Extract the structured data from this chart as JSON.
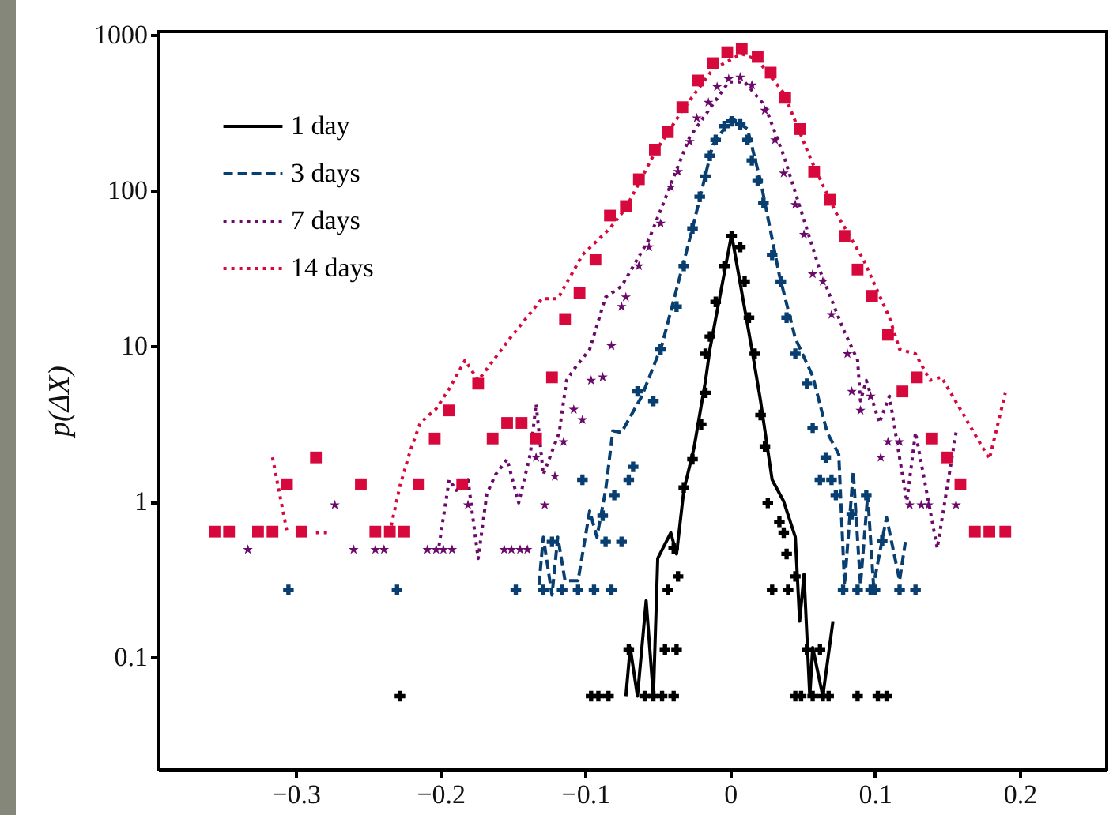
{
  "chart_data": {
    "type": "line",
    "ylabel": "p(ΔX)",
    "log": "y",
    "grid": false,
    "legend": "top left",
    "xlim": [
      -0.395,
      0.26
    ],
    "xticks": [
      {
        "value": -0.3,
        "label": "−0.3"
      },
      {
        "value": -0.2,
        "label": "−0.2"
      },
      {
        "value": -0.1,
        "label": "−0.1"
      },
      0,
      0.1,
      0.2
    ],
    "ylim": [
      0.019,
      1050
    ],
    "yticks": [
      0.1,
      1,
      10,
      100,
      1000
    ],
    "series": [
      {
        "name": "1 day",
        "color": "#000000",
        "line_style": "solid",
        "marker": "none",
        "x": [
          -0.072,
          -0.069,
          -0.064,
          -0.058,
          -0.053,
          -0.05,
          -0.041,
          -0.037,
          -0.032,
          -0.025,
          -0.017,
          -0.014,
          0.001,
          0.015,
          0.021,
          0.029,
          0.037,
          0.045,
          0.048,
          0.051,
          0.055,
          0.057,
          0.064,
          0.071
        ],
        "values": [
          0.056,
          0.115,
          0.056,
          0.23,
          0.056,
          0.43,
          0.63,
          0.46,
          1.18,
          2.2,
          6.0,
          9.5,
          52,
          9.5,
          4.43,
          1.38,
          1.0,
          0.59,
          0.17,
          0.34,
          0.056,
          0.115,
          0.056,
          0.17
        ]
      },
      {
        "type": "scatter",
        "color": "#000000",
        "marker": "cross",
        "x": [
          -0.228,
          -0.096,
          -0.091,
          -0.084,
          -0.07,
          -0.059,
          -0.053,
          -0.047,
          -0.045,
          -0.043,
          -0.039,
          -0.039,
          -0.037,
          -0.036,
          -0.032,
          -0.026,
          -0.02,
          -0.017,
          -0.017,
          -0.014,
          -0.01,
          -0.004,
          0.001,
          0.007,
          0.01,
          0.013,
          0.017,
          0.021,
          0.024,
          0.026,
          0.029,
          0.034,
          0.037,
          0.039,
          0.04,
          0.045,
          0.045,
          0.049,
          0.053,
          0.057,
          0.062,
          0.064,
          0.068,
          0.088,
          0.102,
          0.108
        ],
        "values": [
          0.056,
          0.056,
          0.056,
          0.056,
          0.112,
          0.056,
          0.056,
          0.056,
          0.112,
          0.27,
          0.056,
          0.5,
          0.112,
          0.33,
          1.23,
          1.87,
          3.13,
          5.0,
          8.9,
          11.5,
          19.2,
          32.7,
          51,
          43.3,
          26,
          15.2,
          8.9,
          3.6,
          2.26,
          0.98,
          0.27,
          0.74,
          0.63,
          0.46,
          0.27,
          0.33,
          0.056,
          0.056,
          0.112,
          0.056,
          0.112,
          0.056,
          0.056,
          0.056,
          0.056,
          0.056
        ]
      },
      {
        "name": "3 days",
        "color": "#083f70",
        "line_style": "dashed",
        "marker": "none",
        "x": [
          -0.132,
          -0.129,
          -0.123,
          -0.119,
          -0.114,
          -0.105,
          -0.097,
          -0.092,
          -0.086,
          -0.081,
          -0.075,
          -0.061,
          -0.047,
          -0.026,
          -0.012,
          0.001,
          0.012,
          0.021,
          0.034,
          0.045,
          0.057,
          0.067,
          0.075,
          0.079,
          0.085,
          0.09,
          0.095,
          0.099,
          0.108,
          0.117,
          0.121
        ],
        "values": [
          0.29,
          0.59,
          0.25,
          0.59,
          0.31,
          0.31,
          0.87,
          0.59,
          1.18,
          2.85,
          2.78,
          4.75,
          10.2,
          57,
          196,
          292,
          248,
          115,
          28.5,
          11.2,
          6.4,
          2.78,
          2.01,
          0.29,
          1.56,
          0.29,
          1.1,
          0.29,
          0.79,
          0.31,
          0.55
        ]
      },
      {
        "type": "scatter",
        "color": "#083f70",
        "marker": "cross",
        "x": [
          -0.305,
          -0.23,
          -0.148,
          -0.129,
          -0.123,
          -0.116,
          -0.105,
          -0.102,
          -0.094,
          -0.088,
          -0.086,
          -0.082,
          -0.08,
          -0.075,
          -0.07,
          -0.067,
          -0.064,
          -0.053,
          -0.048,
          -0.037,
          -0.032,
          -0.026,
          -0.021,
          -0.017,
          -0.014,
          -0.01,
          -0.004,
          0.001,
          0.007,
          0.012,
          0.015,
          0.019,
          0.023,
          0.029,
          0.035,
          0.039,
          0.045,
          0.053,
          0.057,
          0.062,
          0.066,
          0.07,
          0.073,
          0.078,
          0.084,
          0.088,
          0.094,
          0.097,
          0.1,
          0.105,
          0.117,
          0.128
        ],
        "values": [
          0.27,
          0.27,
          0.27,
          0.27,
          0.55,
          0.27,
          0.27,
          1.38,
          0.27,
          0.81,
          0.55,
          0.27,
          1.1,
          0.55,
          1.38,
          1.67,
          5.1,
          4.43,
          9.5,
          17.9,
          32.7,
          57,
          91,
          123,
          167,
          211,
          259,
          278,
          266,
          211,
          156,
          115,
          83,
          38.5,
          26,
          15.2,
          8.9,
          5.72,
          2.98,
          1.38,
          1.92,
          1.38,
          1.1,
          0.27,
          0.83,
          0.27,
          1.1,
          0.27,
          0.27,
          0.56,
          0.27,
          0.27
        ]
      },
      {
        "name": "7 days",
        "color": "#6c0a6c",
        "line_style": "dotted",
        "marker": "none",
        "x": [
          -0.201,
          -0.194,
          -0.189,
          -0.181,
          -0.174,
          -0.168,
          -0.162,
          -0.154,
          -0.146,
          -0.138,
          -0.134,
          -0.129,
          -0.118,
          -0.113,
          -0.108,
          -0.097,
          -0.086,
          -0.075,
          -0.056,
          -0.028,
          -0.001,
          0.01,
          0.024,
          0.037,
          0.062,
          0.078,
          0.088,
          0.09,
          0.094,
          0.103,
          0.11,
          0.122,
          0.128,
          0.143,
          0.156
        ],
        "values": [
          0.52,
          1.38,
          1.18,
          1.38,
          0.43,
          1.12,
          1.49,
          1.87,
          0.98,
          2.01,
          4.23,
          1.49,
          2.78,
          6.0,
          7.05,
          9.5,
          20.6,
          24.2,
          48.6,
          220,
          498,
          498,
          351,
          167,
          30.5,
          12.9,
          8.1,
          4.43,
          6.0,
          3.2,
          4.75,
          1.0,
          2.78,
          0.5,
          2.78
        ]
      },
      {
        "type": "scatter",
        "color": "#6c0a6c",
        "marker": "star",
        "x": [
          -0.333,
          -0.273,
          -0.26,
          -0.245,
          -0.239,
          -0.209,
          -0.203,
          -0.198,
          -0.192,
          -0.181,
          -0.156,
          -0.151,
          -0.145,
          -0.14,
          -0.134,
          -0.128,
          -0.121,
          -0.115,
          -0.108,
          -0.102,
          -0.096,
          -0.088,
          -0.082,
          -0.075,
          -0.072,
          -0.063,
          -0.056,
          -0.048,
          -0.041,
          -0.036,
          -0.028,
          -0.023,
          -0.015,
          -0.009,
          -0.001,
          0.007,
          0.015,
          0.024,
          0.031,
          0.037,
          0.045,
          0.051,
          0.057,
          0.064,
          0.07,
          0.081,
          0.084,
          0.09,
          0.097,
          0.104,
          0.109,
          0.117,
          0.124,
          0.132,
          0.137,
          0.156
        ],
        "values": [
          0.49,
          0.95,
          0.49,
          0.49,
          0.49,
          0.49,
          0.49,
          0.49,
          0.49,
          0.95,
          0.49,
          0.49,
          0.49,
          0.49,
          1.92,
          0.95,
          1.45,
          2.42,
          3.9,
          3.35,
          6.0,
          6.3,
          10,
          17.9,
          20.6,
          32.7,
          43.3,
          61.4,
          105,
          132,
          206,
          292,
          368,
          464,
          521,
          534,
          475,
          327,
          211,
          129,
          81,
          52,
          29,
          26,
          15.9,
          8.9,
          5.1,
          3.85,
          4.75,
          1.92,
          2.42,
          2.42,
          0.95,
          0.95,
          0.95,
          0.95
        ]
      },
      {
        "name": "14 days",
        "color": "#d6083c",
        "line_style": "dotted",
        "marker": "none",
        "x": [
          -0.316,
          -0.306,
          null,
          -0.286,
          -0.276,
          null,
          -0.234,
          -0.228,
          -0.221,
          -0.214,
          -0.203,
          -0.194,
          -0.183,
          -0.174,
          -0.152,
          -0.13,
          -0.119,
          -0.102,
          -0.083,
          -0.072,
          -0.052,
          -0.033,
          -0.012,
          0.008,
          0.019,
          0.037,
          0.056,
          0.073,
          0.092,
          0.11,
          0.117,
          0.128,
          0.138,
          0.146,
          0.16,
          0.179,
          0.19
        ],
        "values": [
          1.92,
          0.64,
          null,
          0.63,
          0.63,
          null,
          0.7,
          1.26,
          2.1,
          3.2,
          3.94,
          5.3,
          8.1,
          6.0,
          11.2,
          20.1,
          20.1,
          38.5,
          57,
          77,
          175,
          327,
          600,
          757,
          689,
          423,
          156,
          72,
          36,
          15.2,
          9.5,
          8.9,
          6.0,
          6.3,
          3.77,
          1.87,
          4.98
        ]
      },
      {
        "type": "scatter",
        "color": "#d6083c",
        "marker": "square",
        "x": [
          -0.356,
          -0.346,
          -0.326,
          -0.316,
          -0.306,
          -0.296,
          -0.286,
          -0.255,
          -0.245,
          -0.235,
          -0.225,
          -0.215,
          -0.204,
          -0.194,
          -0.185,
          -0.174,
          -0.164,
          -0.154,
          -0.144,
          -0.134,
          -0.123,
          -0.114,
          -0.104,
          -0.093,
          -0.083,
          -0.072,
          -0.063,
          -0.052,
          -0.043,
          -0.033,
          -0.022,
          -0.012,
          -0.002,
          0.008,
          0.019,
          0.028,
          0.038,
          0.048,
          0.058,
          0.069,
          0.079,
          0.088,
          0.098,
          0.109,
          0.119,
          0.129,
          0.139,
          0.15,
          0.159,
          0.169,
          0.179,
          0.19
        ],
        "values": [
          0.64,
          0.64,
          0.64,
          0.64,
          1.29,
          0.64,
          1.92,
          1.29,
          0.64,
          0.64,
          0.64,
          1.29,
          2.54,
          3.85,
          1.29,
          5.72,
          2.54,
          3.2,
          3.2,
          2.54,
          6.28,
          14.9,
          22.0,
          35.9,
          68.9,
          79.3,
          118,
          183,
          237,
          343,
          509,
          658,
          774,
          811,
          722,
          572,
          394,
          248,
          132,
          87,
          51,
          31,
          21,
          11.8,
          5.1,
          6.28,
          2.54,
          1.92,
          1.29,
          0.64,
          0.64,
          0.64
        ]
      }
    ]
  }
}
